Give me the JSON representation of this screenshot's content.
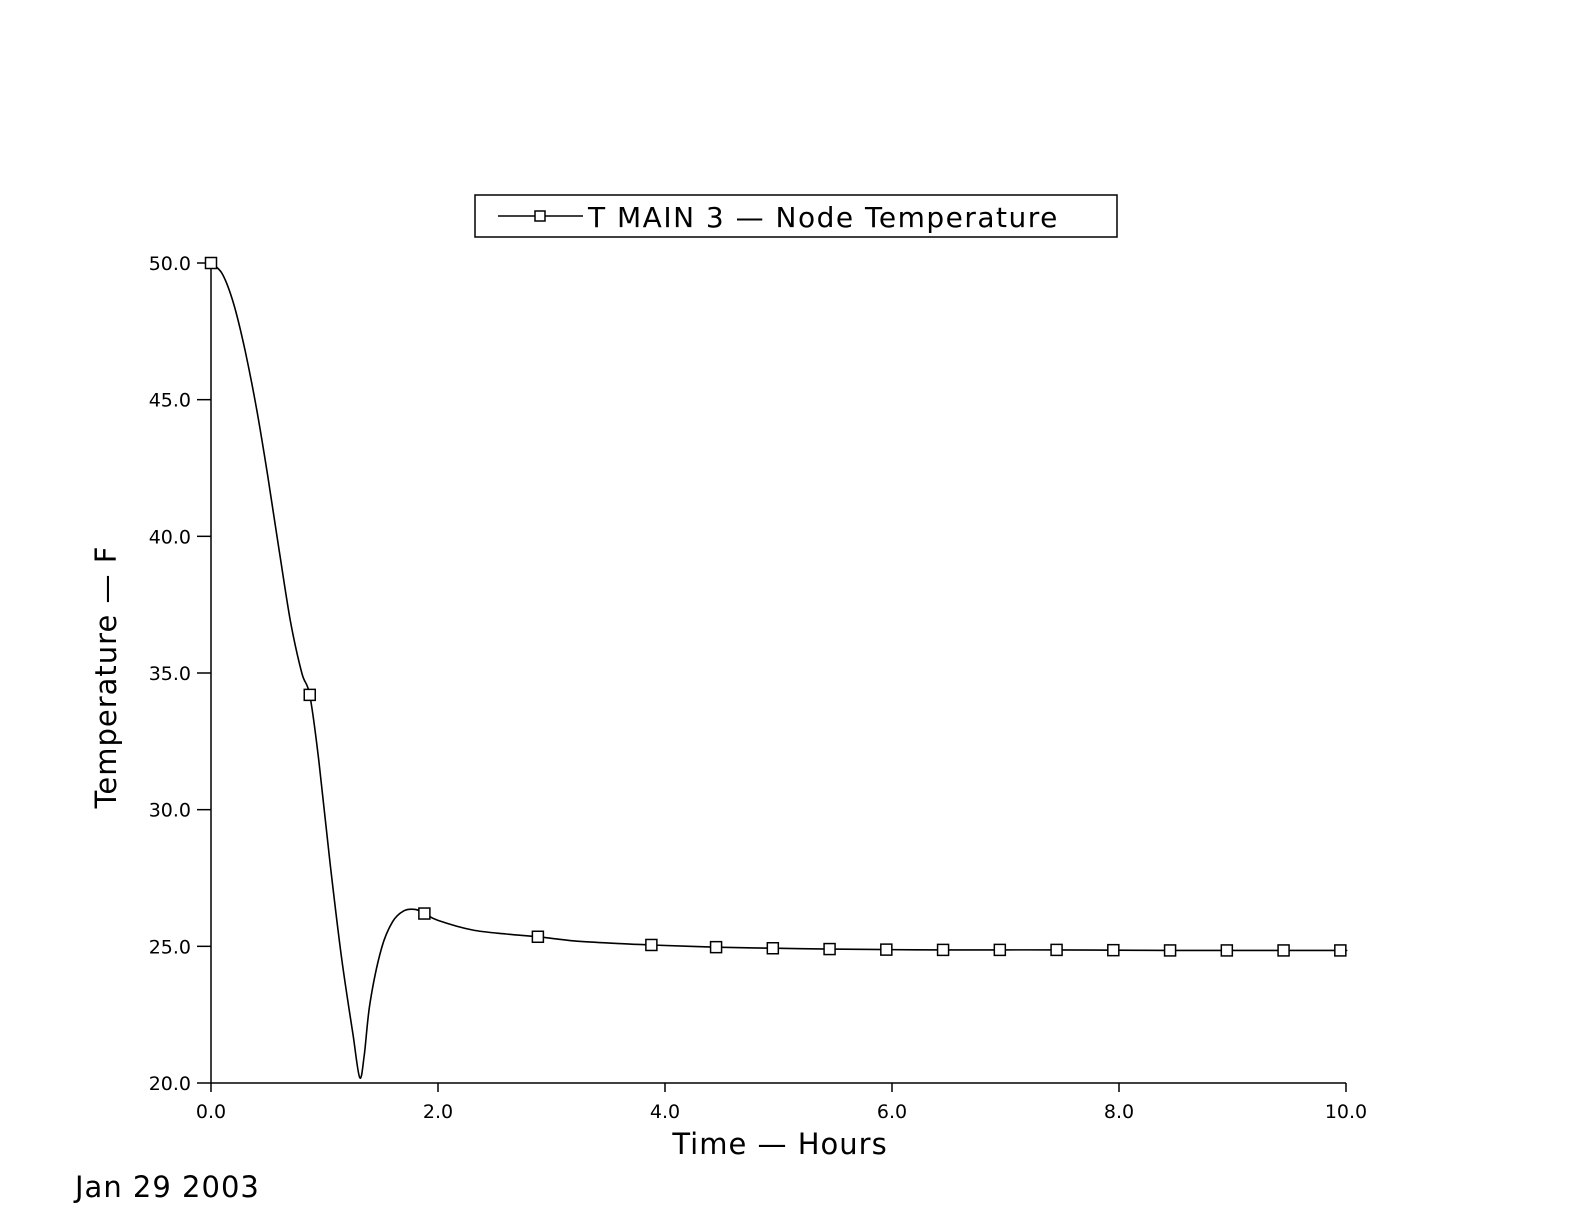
{
  "chart_data": {
    "type": "line",
    "title": "",
    "xlabel": "Time  —  Hours",
    "ylabel": "Temperature  —  F",
    "xlim": [
      0,
      10
    ],
    "ylim": [
      20,
      50
    ],
    "xticks": [
      "0.0",
      "2.0",
      "4.0",
      "6.0",
      "8.0",
      "10.0"
    ],
    "yticks": [
      "20.0",
      "25.0",
      "30.0",
      "35.0",
      "40.0",
      "45.0",
      "50.0"
    ],
    "grid": false,
    "legend_position": "top-center",
    "date": "Jan 29 2003",
    "line_color": "#000000",
    "series": [
      {
        "name": "T MAIN 3 — Node Temperature",
        "marker": "square",
        "curve": {
          "x": [
            0.0,
            0.1,
            0.2,
            0.3,
            0.4,
            0.5,
            0.6,
            0.7,
            0.8,
            0.87,
            0.95,
            1.05,
            1.15,
            1.25,
            1.31,
            1.35,
            1.4,
            1.5,
            1.6,
            1.7,
            1.8,
            1.88,
            2.0,
            2.3,
            2.6,
            2.88,
            3.2,
            3.6,
            3.88,
            4.45,
            4.95,
            5.45,
            5.95,
            6.45,
            6.95,
            7.45,
            7.95,
            8.45,
            8.95,
            9.45,
            9.95,
            10.0
          ],
          "y": [
            50.0,
            49.6,
            48.5,
            46.8,
            44.7,
            42.2,
            39.5,
            36.9,
            35.0,
            34.2,
            31.8,
            28.0,
            24.6,
            21.8,
            20.2,
            21.0,
            22.9,
            24.9,
            25.9,
            26.3,
            26.35,
            26.2,
            25.95,
            25.6,
            25.45,
            25.35,
            25.2,
            25.1,
            25.05,
            24.97,
            24.93,
            24.9,
            24.88,
            24.87,
            24.87,
            24.87,
            24.86,
            24.85,
            24.85,
            24.85,
            24.85,
            24.85
          ]
        },
        "markers": {
          "x": [
            0.0,
            0.87,
            1.88,
            2.88,
            3.88,
            4.45,
            4.95,
            5.45,
            5.95,
            6.45,
            6.95,
            7.45,
            7.95,
            8.45,
            8.95,
            9.45,
            9.95
          ],
          "y": [
            50.0,
            34.2,
            26.2,
            25.35,
            25.05,
            24.97,
            24.93,
            24.9,
            24.88,
            24.87,
            24.87,
            24.87,
            24.86,
            24.85,
            24.85,
            24.85,
            24.85
          ]
        }
      }
    ]
  }
}
